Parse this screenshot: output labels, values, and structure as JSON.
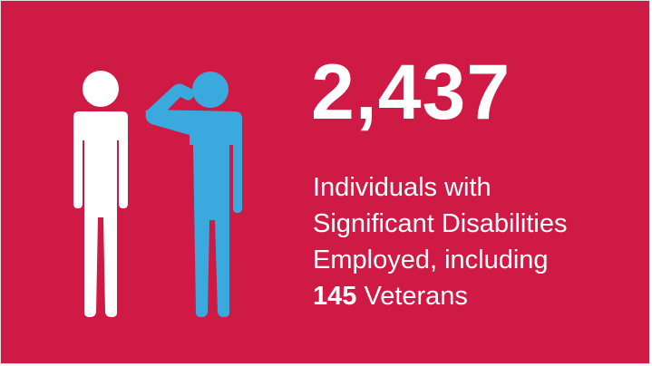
{
  "colors": {
    "background": "#cf1a45",
    "figure_left": "#ffffff",
    "figure_right": "#3aa9de",
    "text": "#ffffff"
  },
  "icons": {
    "left_figure": "person-standing-icon",
    "right_figure": "person-saluting-icon"
  },
  "stat": {
    "value": "2,437"
  },
  "caption": {
    "line1": "Individuals with",
    "line2": "Significant Disabilities",
    "line3": "Employed, including",
    "veterans_count": "145",
    "veterans_label": " Veterans"
  }
}
